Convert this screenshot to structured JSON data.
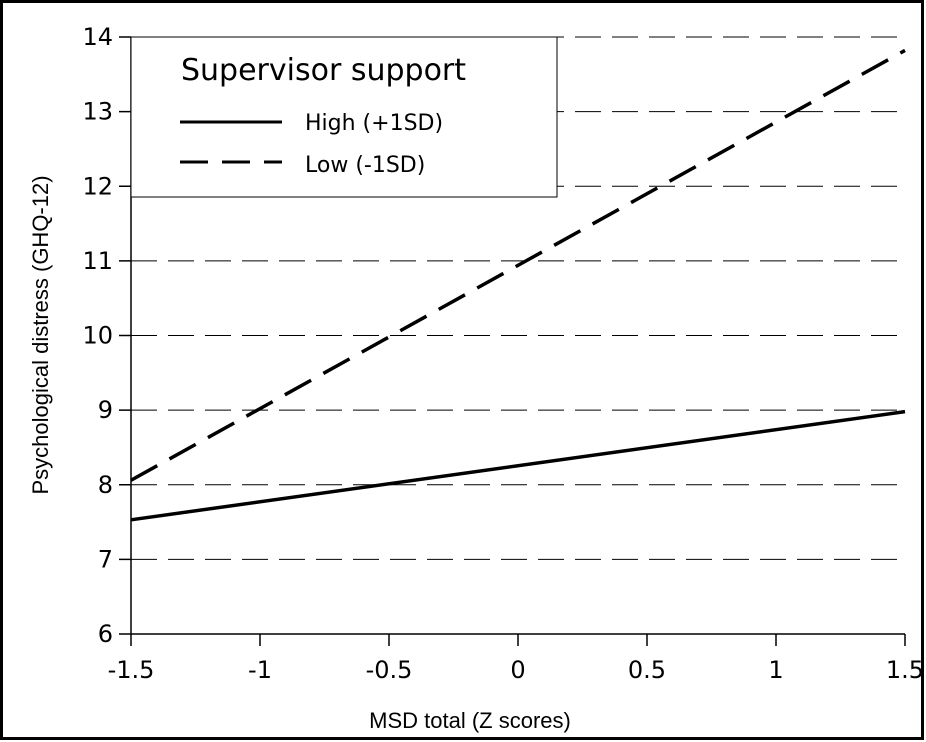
{
  "chart_data": {
    "type": "line",
    "xlabel": "MSD total  (Z scores)",
    "ylabel": "Psychological distress (GHQ-12)",
    "xlim": [
      -1.5,
      1.5
    ],
    "ylim": [
      6,
      14
    ],
    "x_ticks": [
      -1.5,
      -1,
      -0.5,
      0,
      0.5,
      1,
      1.5
    ],
    "x_tick_labels": [
      "-1.5",
      "-1",
      "-0.5",
      "0",
      "0.5",
      "1",
      "1.5"
    ],
    "y_ticks": [
      6,
      7,
      8,
      9,
      10,
      11,
      12,
      13,
      14
    ],
    "y_tick_labels": [
      "6",
      "7",
      "8",
      "9",
      "10",
      "11",
      "12",
      "13",
      "14"
    ],
    "grid": "horizontal dashed",
    "legend": {
      "title": "Supervisor support",
      "placement": "top-left"
    },
    "series": [
      {
        "name": "High (+1SD)",
        "style": "solid",
        "x": [
          -1.5,
          1.5
        ],
        "values": [
          7.53,
          8.98
        ]
      },
      {
        "name": "Low (-1SD)",
        "style": "dashed",
        "x": [
          -1.5,
          1.5
        ],
        "values": [
          8.06,
          13.82
        ]
      }
    ]
  }
}
